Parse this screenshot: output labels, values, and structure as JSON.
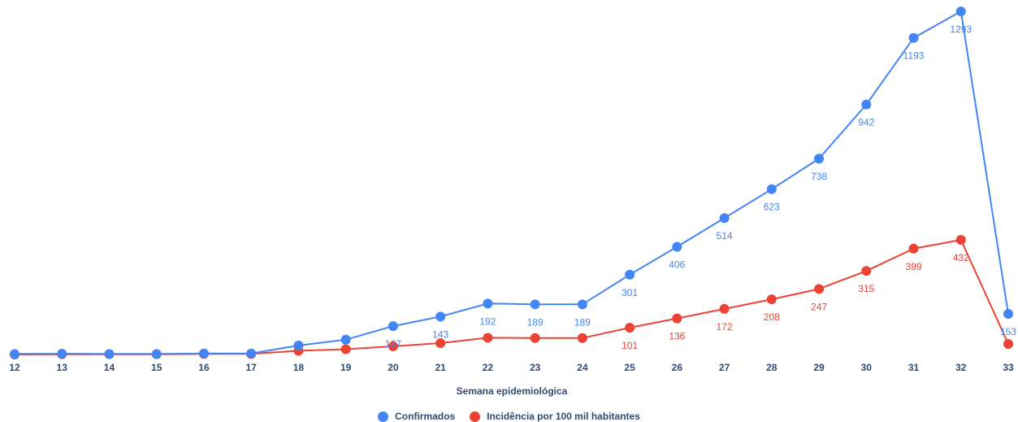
{
  "chart_data": {
    "type": "line",
    "title": "",
    "xlabel": "Semana epidemiológica",
    "ylabel": "",
    "categories": [
      "12",
      "13",
      "14",
      "15",
      "16",
      "17",
      "18",
      "19",
      "20",
      "21",
      "22",
      "23",
      "24",
      "25",
      "26",
      "27",
      "28",
      "29",
      "30",
      "31",
      "32",
      "33"
    ],
    "series": [
      {
        "name": "Confirmados",
        "color": "#4285f4",
        "values": [
          2,
          3,
          2,
          2,
          4,
          4,
          34,
          56,
          107,
          143,
          192,
          189,
          189,
          301,
          406,
          514,
          623,
          738,
          942,
          1193,
          1293,
          153
        ],
        "labels": [
          "",
          "",
          "",
          "",
          "",
          "",
          "",
          "",
          "107",
          "143",
          "192",
          "189",
          "189",
          "301",
          "406",
          "514",
          "623",
          "738",
          "942",
          "1193",
          "1293",
          "153"
        ]
      },
      {
        "name": "Incidência por 100 mil habitantes",
        "color": "#ea4335",
        "values": [
          0,
          1,
          1,
          1,
          2,
          2,
          14,
          20,
          31,
          43,
          63,
          62,
          62,
          101,
          136,
          172,
          208,
          247,
          315,
          399,
          432,
          40
        ],
        "labels": [
          "",
          "",
          "",
          "",
          "",
          "",
          "",
          "",
          "",
          "",
          "",
          "",
          "",
          "101",
          "136",
          "172",
          "208",
          "247",
          "315",
          "399",
          "432",
          ""
        ]
      }
    ],
    "ylim": [
      0,
      1293
    ],
    "grid": false,
    "legend_position": "bottom"
  },
  "legend": {
    "items": [
      {
        "label": "Confirmados",
        "color": "#4285f4"
      },
      {
        "label": "Incidência por 100 mil habitantes",
        "color": "#ea4335"
      }
    ]
  }
}
